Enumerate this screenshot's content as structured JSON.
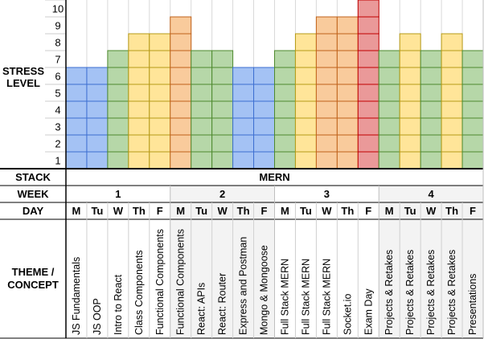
{
  "chart_data": {
    "type": "bar",
    "ylabel_lines": [
      "STRESS",
      "LEVEL"
    ],
    "y_ticks": [
      "1",
      "2",
      "3",
      "4",
      "5",
      "6",
      "7",
      "8",
      "9",
      "10"
    ],
    "ylim": [
      0,
      10
    ],
    "grid": true,
    "categories": [
      "JS Fundamentals",
      "JS OOP",
      "Intro to React",
      "Class Components",
      "Functional Components",
      "Functional Components",
      "React: APIs",
      "React: Router",
      "Express and Postman",
      "Mongo & Mongoose",
      "Full Stack MERN",
      "Full Stack MERN",
      "Full Stack MERN",
      "Socket.io",
      "Exam Day",
      "Projects & Retakes",
      "Projects & Retakes",
      "Projects & Retakes",
      "Projects & Retakes",
      "Presentations"
    ],
    "values": [
      6,
      6,
      7,
      8,
      8,
      9,
      7,
      7,
      6,
      6,
      7,
      8,
      9,
      9,
      10,
      7,
      8,
      7,
      8,
      7
    ],
    "level_colors": {
      "6": "#a4c2f4",
      "7": "#b6d7a8",
      "8": "#ffe599",
      "9": "#f9cb9c",
      "10": "#ea9999"
    },
    "border_colors": {
      "6": "#3d6fd1",
      "7": "#4e8a2e",
      "8": "#b59a16",
      "9": "#c0621a",
      "10": "#c00000"
    }
  },
  "table": {
    "stack_label": "STACK",
    "stack_value": "MERN",
    "week_label": "WEEK",
    "weeks": [
      "1",
      "2",
      "3",
      "4"
    ],
    "day_label": "DAY",
    "days": [
      "M",
      "Tu",
      "W",
      "Th",
      "F",
      "M",
      "Tu",
      "W",
      "Th",
      "F",
      "M",
      "Tu",
      "W",
      "Th",
      "F",
      "M",
      "Tu",
      "W",
      "Th",
      "F"
    ],
    "theme_label_lines": [
      "THEME /",
      "CONCEPT"
    ],
    "shaded_weeks": [
      2,
      4
    ],
    "shade_color": "#f3f3f3"
  }
}
